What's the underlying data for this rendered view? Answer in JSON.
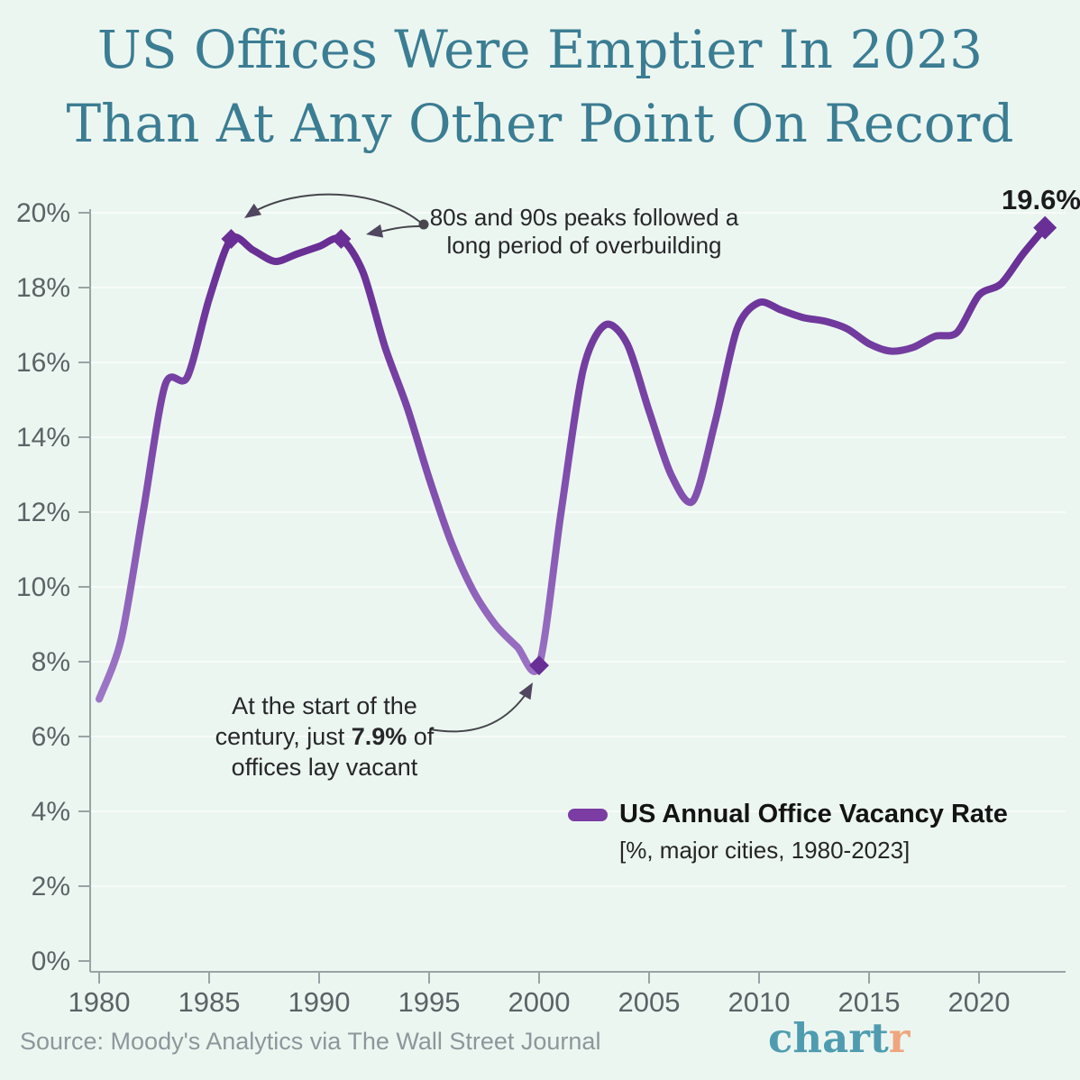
{
  "title": {
    "line1": "US Offices Were Emptier In 2023",
    "line2": "Than At Any Other Point On Record"
  },
  "chart_data": {
    "type": "line",
    "series": [
      {
        "name": "US Annual Office Vacancy Rate",
        "color": "#7b3da3",
        "x": [
          1980,
          1981,
          1982,
          1983,
          1984,
          1985,
          1986,
          1987,
          1988,
          1989,
          1990,
          1991,
          1992,
          1993,
          1994,
          1995,
          1996,
          1997,
          1998,
          1999,
          2000,
          2001,
          2002,
          2003,
          2004,
          2005,
          2006,
          2007,
          2008,
          2009,
          2010,
          2011,
          2012,
          2013,
          2014,
          2015,
          2016,
          2017,
          2018,
          2019,
          2020,
          2021,
          2022,
          2023
        ],
        "values": [
          7.0,
          8.6,
          12.0,
          15.4,
          15.6,
          17.7,
          19.3,
          19.0,
          18.7,
          18.9,
          19.1,
          19.3,
          18.4,
          16.4,
          14.8,
          12.9,
          11.2,
          9.9,
          9.0,
          8.4,
          7.9,
          12.0,
          15.8,
          17.0,
          16.5,
          14.7,
          13.0,
          12.3,
          14.4,
          16.9,
          17.6,
          17.4,
          17.2,
          17.1,
          16.9,
          16.5,
          16.3,
          16.4,
          16.7,
          16.8,
          17.8,
          18.1,
          18.9,
          19.6
        ]
      }
    ],
    "markers": [
      {
        "year": 1986,
        "value": 19.3
      },
      {
        "year": 1991,
        "value": 19.3
      },
      {
        "year": 2000,
        "value": 7.9
      },
      {
        "year": 2023,
        "value": 19.6,
        "size": "large"
      }
    ],
    "x_ticks": [
      1980,
      1985,
      1990,
      1995,
      2000,
      2005,
      2010,
      2015,
      2020
    ],
    "y_ticks": [
      0,
      2,
      4,
      6,
      8,
      10,
      12,
      14,
      16,
      18,
      20
    ],
    "y_tick_suffix": "%",
    "xlim": [
      1980,
      2023
    ],
    "ylim": [
      0,
      20
    ],
    "grid": true,
    "legend_position": "bottom-right",
    "end_point_label": "19.6%"
  },
  "annotations": {
    "peaks": {
      "line1": "80s and 90s peaks followed a",
      "line2": "long period of overbuilding"
    },
    "century": {
      "line1": "At the start of the",
      "line2_pre": "century, just ",
      "line2_bold": "7.9%",
      "line2_post": " of",
      "line3": "offices lay vacant"
    },
    "end_value": "19.6%"
  },
  "legend": {
    "label": "US Annual Office Vacancy Rate",
    "sublabel": "[%, major cities, 1980-2023]"
  },
  "footer": {
    "source": "Source: Moody's Analytics via The Wall Street Journal",
    "logo_main": "chart",
    "logo_accent": "r"
  },
  "colors": {
    "background": "#ecf6f1",
    "title": "#3b7d93",
    "line": "#7b3da3",
    "line_gradient_top": "#652a91",
    "line_gradient_bottom": "#a17bc9",
    "marker": "#692f97",
    "axis": "#9aa3a4",
    "tick_label": "#5b6366",
    "grid": "#f7fcf9",
    "annotation_text": "#27272a",
    "arrow": "#45454c",
    "arrowhead": "#4f4660",
    "dot": "#47474d",
    "source_text": "#8d979b",
    "logo_teal": "#4f9cb0",
    "logo_accent": "#efa67e"
  }
}
